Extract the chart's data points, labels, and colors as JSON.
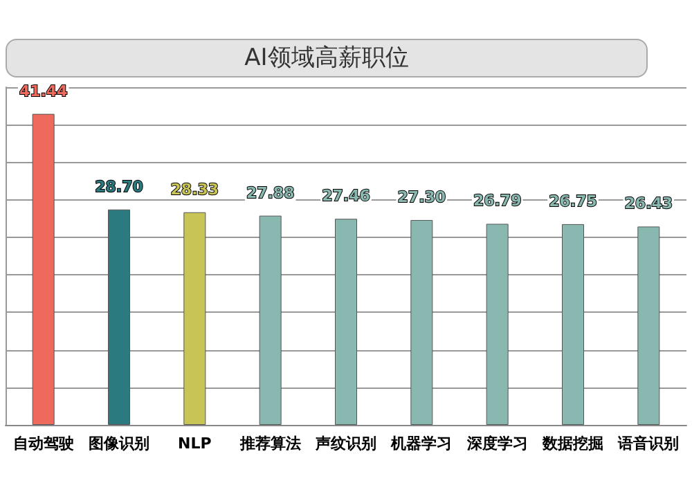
{
  "chart_data": {
    "type": "bar",
    "title": "AI领域高薪职位",
    "categories": [
      "自动驾驶",
      "图像识别",
      "NLP",
      "推荐算法",
      "声纹识别",
      "机器学习",
      "深度学习",
      "数据挖掘",
      "语音识别"
    ],
    "values": [
      41.44,
      28.7,
      28.33,
      27.88,
      27.46,
      27.3,
      26.79,
      26.75,
      26.43
    ],
    "colors": [
      "#ee6a5c",
      "#2a7a80",
      "#c8c455",
      "#88b8b0",
      "#88b8b0",
      "#88b8b0",
      "#88b8b0",
      "#88b8b0",
      "#88b8b0"
    ],
    "ylim": [
      0,
      45
    ],
    "yticks": [
      {
        "value": 0,
        "label": null
      },
      {
        "value": 5,
        "label": null
      },
      {
        "value": 10,
        "label": null
      },
      {
        "value": 15,
        "label": null
      },
      {
        "value": 20,
        "label": null
      },
      {
        "value": 25,
        "label": null
      },
      {
        "value": 30,
        "label": null
      },
      {
        "value": 35,
        "label": null
      },
      {
        "value": 40,
        "label": null
      },
      {
        "value": 45,
        "label": null
      }
    ],
    "value_labels": [
      "41.44",
      "28.70",
      "28.33",
      "27.88",
      "27.46",
      "27.30",
      "26.79",
      "26.75",
      "26.43"
    ],
    "tick_labels": "x",
    "grid": "y"
  }
}
